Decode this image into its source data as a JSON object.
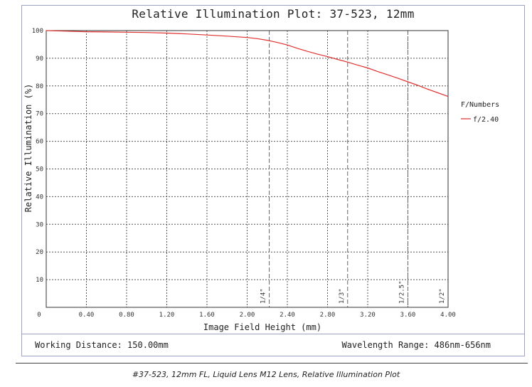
{
  "chart_data": {
    "type": "line",
    "title": "Relative Illumination Plot: 37-523, 12mm",
    "xlabel": "Image Field Height (mm)",
    "ylabel": "Relative Illumination (%)",
    "xlim": [
      0,
      4.0
    ],
    "ylim": [
      0,
      100
    ],
    "x_ticks": [
      "0",
      "0.40",
      "0.80",
      "1.20",
      "1.60",
      "2.00",
      "2.40",
      "2.80",
      "3.20",
      "3.60",
      "4.00"
    ],
    "y_ticks": [
      "10",
      "20",
      "30",
      "40",
      "50",
      "60",
      "70",
      "80",
      "90",
      "100"
    ],
    "grid": true,
    "legend": {
      "title": "F/Numbers",
      "placement": "right"
    },
    "series": [
      {
        "name": "f/2.40",
        "color": "#e03131",
        "x": [
          0,
          0.2,
          0.4,
          0.6,
          0.8,
          1.0,
          1.2,
          1.4,
          1.6,
          1.8,
          2.0,
          2.1,
          2.2,
          2.3,
          2.4,
          2.5,
          2.6,
          2.7,
          2.8,
          2.9,
          3.0,
          3.1,
          3.2,
          3.3,
          3.4,
          3.5,
          3.6,
          3.7,
          3.8,
          3.9,
          4.0
        ],
        "y": [
          100,
          99.8,
          99.6,
          99.5,
          99.4,
          99.3,
          99.1,
          98.8,
          98.4,
          98.0,
          97.5,
          97.1,
          96.5,
          95.7,
          94.8,
          93.6,
          92.5,
          91.5,
          90.6,
          89.6,
          88.6,
          87.5,
          86.5,
          85.2,
          84.0,
          82.8,
          81.5,
          80.2,
          78.8,
          77.5,
          76.2
        ]
      }
    ],
    "annotations": [
      {
        "label": "1/4\"",
        "x": 2.22
      },
      {
        "label": "1/3\"",
        "x": 3.0
      },
      {
        "label": "1/2.5\"",
        "x": 3.6
      },
      {
        "label": "1/2\"",
        "x": 4.0
      }
    ]
  },
  "footer": {
    "working_distance": "Working Distance: 150.00mm",
    "wavelength_range": "Wavelength Range: 486nm-656nm"
  },
  "caption": "#37-523, 12mm FL, Liquid Lens M12 Lens, Relative Illumination Plot"
}
